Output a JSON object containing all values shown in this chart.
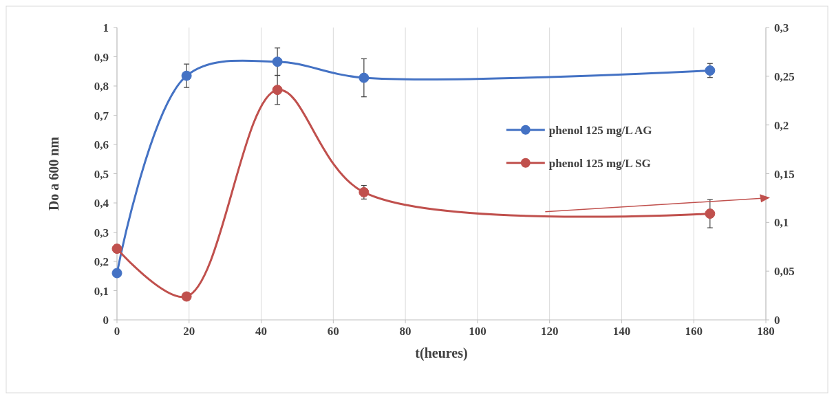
{
  "chart_data": {
    "type": "line",
    "xlabel": "t(heures)",
    "ylabel": "Do a 600 nm",
    "x": [
      0,
      19.3,
      44.5,
      68.5,
      164.5
    ],
    "series": [
      {
        "name": "phenol 125 mg/L AG",
        "color": "#4472c4",
        "values": [
          0.16,
          0.835,
          0.883,
          0.828,
          0.853
        ],
        "errors": [
          null,
          0.04,
          0.047,
          0.065,
          0.024
        ]
      },
      {
        "name": "phenol 125 mg/L SG",
        "color": "#c0504d",
        "axis": "y2",
        "values": [
          0.073,
          0.024,
          0.236,
          0.131,
          0.109
        ],
        "errors": [
          null,
          null,
          0.015,
          0.007,
          0.0145
        ]
      }
    ],
    "xlim": [
      0,
      180
    ],
    "xticks": [
      0,
      20,
      40,
      60,
      80,
      100,
      120,
      140,
      160,
      180
    ],
    "ylim": [
      0,
      1
    ],
    "yticks": [
      0,
      {
        "value": 0.1,
        "label": "0,1"
      },
      {
        "value": 0.2,
        "label": "0,2"
      },
      {
        "value": 0.3,
        "label": "0,3"
      },
      {
        "value": 0.4,
        "label": "0,4"
      },
      {
        "value": 0.5,
        "label": "0,5"
      },
      {
        "value": 0.6,
        "label": "0,6"
      },
      {
        "value": 0.7,
        "label": "0,7"
      },
      {
        "value": 0.8,
        "label": "0,8"
      },
      {
        "value": 0.9,
        "label": "0,9"
      },
      1
    ],
    "y2lim": [
      0,
      0.3
    ],
    "y2ticks": [
      0,
      {
        "value": 0.05,
        "label": "0,05"
      },
      {
        "value": 0.1,
        "label": "0,1"
      },
      {
        "value": 0.15,
        "label": "0,15"
      },
      {
        "value": 0.2,
        "label": "0,2"
      },
      {
        "value": 0.25,
        "label": "0,25"
      },
      {
        "value": 0.3,
        "label": "0,3"
      }
    ],
    "grid": "x",
    "legend": "right",
    "marker": "circle",
    "line_style": "solid"
  }
}
